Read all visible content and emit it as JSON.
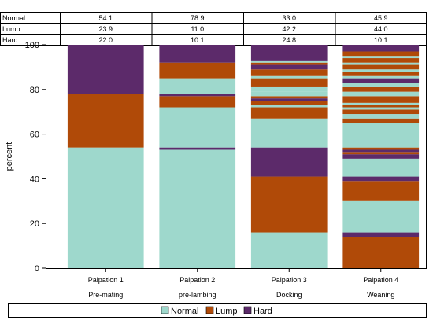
{
  "chart_data": {
    "type": "bar",
    "stacked": true,
    "ylabel": "percent",
    "ylim": [
      0,
      100
    ],
    "yticks": [
      0,
      20,
      40,
      60,
      80,
      100
    ],
    "grid": false,
    "legend_position": "bottom",
    "categories": [
      {
        "label": "Palpation 1",
        "sublabel": "Pre-mating"
      },
      {
        "label": "Palpation 2",
        "sublabel": "pre-lambing"
      },
      {
        "label": "Palpation 3",
        "sublabel": "Docking"
      },
      {
        "label": "Palpation 4",
        "sublabel": "Weaning"
      }
    ],
    "series": [
      {
        "name": "Normal",
        "color": "#9ed8cc"
      },
      {
        "name": "Lump",
        "color": "#b04a08"
      },
      {
        "name": "Hard",
        "color": "#5c2a6a"
      }
    ],
    "table": {
      "rows": [
        {
          "label": "Normal",
          "values": [
            "54.1",
            "78.9",
            "33.0",
            "45.9"
          ]
        },
        {
          "label": "Lump",
          "values": [
            "23.9",
            "11.0",
            "42.2",
            "44.0"
          ]
        },
        {
          "label": "Hard",
          "values": [
            "22.0",
            "10.1",
            "24.8",
            "10.1"
          ]
        }
      ]
    },
    "segments": [
      [
        {
          "series": "Normal",
          "start": 0,
          "end": 54
        },
        {
          "series": "Lump",
          "start": 54,
          "end": 78
        },
        {
          "series": "Hard",
          "start": 78,
          "end": 100
        }
      ],
      [
        {
          "series": "Normal",
          "start": 0,
          "end": 53
        },
        {
          "series": "Hard",
          "start": 53,
          "end": 54
        },
        {
          "series": "Normal",
          "start": 54,
          "end": 72
        },
        {
          "series": "Lump",
          "start": 72,
          "end": 77
        },
        {
          "series": "Hard",
          "start": 77,
          "end": 78
        },
        {
          "series": "Normal",
          "start": 78,
          "end": 85
        },
        {
          "series": "Lump",
          "start": 85,
          "end": 92
        },
        {
          "series": "Hard",
          "start": 92,
          "end": 100
        }
      ],
      [
        {
          "series": "Normal",
          "start": 0,
          "end": 16
        },
        {
          "series": "Lump",
          "start": 16,
          "end": 41
        },
        {
          "series": "Hard",
          "start": 41,
          "end": 54
        },
        {
          "series": "Normal",
          "start": 54,
          "end": 67
        },
        {
          "series": "Lump",
          "start": 67,
          "end": 72
        },
        {
          "series": "Normal",
          "start": 72,
          "end": 73
        },
        {
          "series": "Lump",
          "start": 73,
          "end": 75
        },
        {
          "series": "Hard",
          "start": 75,
          "end": 76
        },
        {
          "series": "Lump",
          "start": 76,
          "end": 77
        },
        {
          "series": "Normal",
          "start": 77,
          "end": 79
        },
        {
          "series": "Normal",
          "start": 79,
          "end": 81
        },
        {
          "series": "Lump",
          "start": 81,
          "end": 85
        },
        {
          "series": "Normal",
          "start": 85,
          "end": 86
        },
        {
          "series": "Lump",
          "start": 86,
          "end": 89
        },
        {
          "series": "Hard",
          "start": 89,
          "end": 91
        },
        {
          "series": "Lump",
          "start": 91,
          "end": 92
        },
        {
          "series": "Normal",
          "start": 92,
          "end": 93
        },
        {
          "series": "Hard",
          "start": 93,
          "end": 100
        }
      ],
      [
        {
          "series": "Lump",
          "start": 0,
          "end": 14
        },
        {
          "series": "Hard",
          "start": 14,
          "end": 16
        },
        {
          "series": "Normal",
          "start": 16,
          "end": 30
        },
        {
          "series": "Lump",
          "start": 30,
          "end": 39
        },
        {
          "series": "Hard",
          "start": 39,
          "end": 41
        },
        {
          "series": "Normal",
          "start": 41,
          "end": 49
        },
        {
          "series": "Hard",
          "start": 49,
          "end": 51
        },
        {
          "series": "Lump",
          "start": 51,
          "end": 52
        },
        {
          "series": "Hard",
          "start": 52,
          "end": 53
        },
        {
          "series": "Lump",
          "start": 53,
          "end": 54
        },
        {
          "series": "Normal",
          "start": 54,
          "end": 65
        },
        {
          "series": "Lump",
          "start": 65,
          "end": 67
        },
        {
          "series": "Normal",
          "start": 67,
          "end": 69
        },
        {
          "series": "Lump",
          "start": 69,
          "end": 71
        },
        {
          "series": "Normal",
          "start": 71,
          "end": 72
        },
        {
          "series": "Lump",
          "start": 72,
          "end": 73
        },
        {
          "series": "Normal",
          "start": 73,
          "end": 74
        },
        {
          "series": "Lump",
          "start": 74,
          "end": 77
        },
        {
          "series": "Normal",
          "start": 77,
          "end": 79
        },
        {
          "series": "Lump",
          "start": 79,
          "end": 81
        },
        {
          "series": "Normal",
          "start": 81,
          "end": 83
        },
        {
          "series": "Hard",
          "start": 83,
          "end": 85
        },
        {
          "series": "Normal",
          "start": 85,
          "end": 86
        },
        {
          "series": "Lump",
          "start": 86,
          "end": 88
        },
        {
          "series": "Normal",
          "start": 88,
          "end": 89
        },
        {
          "series": "Lump",
          "start": 89,
          "end": 91
        },
        {
          "series": "Normal",
          "start": 91,
          "end": 92
        },
        {
          "series": "Lump",
          "start": 92,
          "end": 94
        },
        {
          "series": "Normal",
          "start": 94,
          "end": 95
        },
        {
          "series": "Lump",
          "start": 95,
          "end": 97
        },
        {
          "series": "Hard",
          "start": 97,
          "end": 100
        }
      ]
    ]
  }
}
